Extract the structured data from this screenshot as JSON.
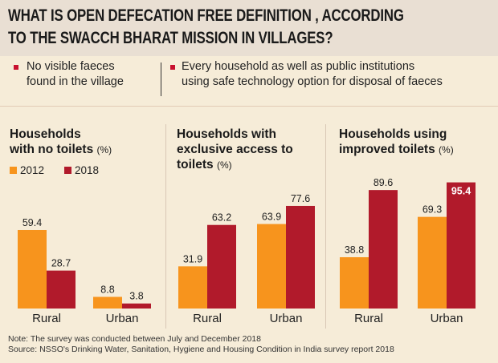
{
  "title": {
    "line1": "WHAT IS OPEN DEFECATION FREE DEFINITION , ACCORDING",
    "line2": "TO THE SWACCH BHARAT MISSION IN VILLAGES?"
  },
  "definitions": [
    {
      "line1": "No visible faeces",
      "line2": "found in the village"
    },
    {
      "line1": "Every household as well as public institutions",
      "line2": "using safe technology option for disposal of faeces"
    }
  ],
  "legend": [
    {
      "label": "2012",
      "color": "#f7941d"
    },
    {
      "label": "2018",
      "color": "#b11a2b"
    }
  ],
  "colors": {
    "y2012": "#f7941d",
    "y2018": "#b11a2b",
    "bullet": "#c8102e"
  },
  "chart_data": [
    {
      "type": "bar",
      "title_lines": [
        "Households",
        "with no toilets"
      ],
      "unit": "(%)",
      "categories": [
        "Rural",
        "Urban"
      ],
      "series": [
        {
          "name": "2012",
          "values": [
            59.4,
            8.8
          ]
        },
        {
          "name": "2018",
          "values": [
            28.7,
            3.8
          ]
        }
      ],
      "ylim": [
        0,
        100
      ]
    },
    {
      "type": "bar",
      "title_lines": [
        "Households with",
        "exclusive access to",
        "toilets"
      ],
      "unit": "(%)",
      "categories": [
        "Rural",
        "Urban"
      ],
      "series": [
        {
          "name": "2012",
          "values": [
            31.9,
            63.9
          ]
        },
        {
          "name": "2018",
          "values": [
            63.2,
            77.6
          ]
        }
      ],
      "ylim": [
        0,
        100
      ]
    },
    {
      "type": "bar",
      "title_lines": [
        "Households using",
        "improved toilets"
      ],
      "unit": "(%)",
      "categories": [
        "Rural",
        "Urban"
      ],
      "series": [
        {
          "name": "2012",
          "values": [
            38.8,
            69.3
          ]
        },
        {
          "name": "2018",
          "values": [
            89.6,
            95.4
          ]
        }
      ],
      "ylim": [
        0,
        100
      ]
    }
  ],
  "footer": {
    "note": "Note: The survey was conducted between July and December 2018",
    "source": "Source: NSSO's Drinking Water, Sanitation, Hygiene and Housing Condition in India survey report 2018"
  }
}
